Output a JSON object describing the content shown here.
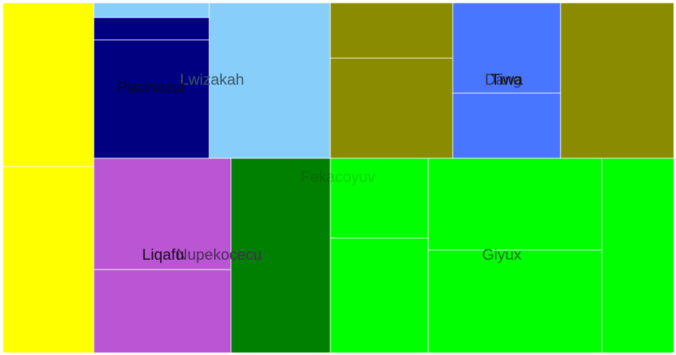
{
  "chart_data": {
    "type": "treemap",
    "root": "Fekacoyuv",
    "groups": [
      {
        "name": "Liqafu",
        "color": "#ba55d3",
        "label_color": "#1a0a1f",
        "children": [
          {
            "color": "#ffff00",
            "value": 1
          },
          {
            "color": "#ba55d3",
            "value": 1
          }
        ]
      },
      {
        "name": "Lwizakah",
        "color": "#87cefa",
        "label_color": "#3a5566",
        "children": [
          {
            "color": "#87cefa",
            "value": 1
          },
          {
            "color": "#000080",
            "value": 1
          }
        ]
      },
      {
        "name": "Pacinozut",
        "color": "#000080",
        "label_color": "#0a0a1a",
        "children": [
          {
            "color": "#000080",
            "value": 1
          }
        ]
      },
      {
        "name": "Nupekocecu",
        "color": "#008000",
        "label_color": "#4a2a5a",
        "children": [
          {
            "color": "#008000",
            "value": 1
          }
        ]
      },
      {
        "name": "Tiwa",
        "color": "#4876ff",
        "label_color": "#111111",
        "children": [
          {
            "color": "#8b8b00",
            "value": 1
          },
          {
            "color": "#4876ff",
            "value": 1
          }
        ]
      },
      {
        "name": "Dang",
        "color": "#8b8b00",
        "label_color": "#333355",
        "children": [
          {
            "color": "#8b8b00",
            "value": 1
          }
        ]
      },
      {
        "name": "Giyux",
        "color": "#00ff00",
        "label_color": "#1f6f1f",
        "children": [
          {
            "color": "#00ff00",
            "value": 1
          }
        ]
      }
    ]
  }
}
